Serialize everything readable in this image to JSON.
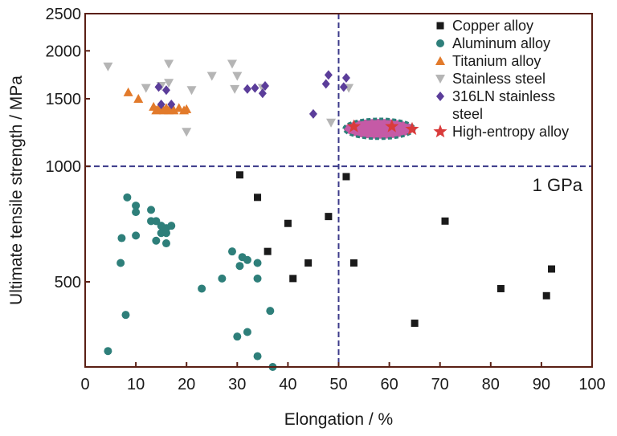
{
  "chart_data": {
    "type": "scatter",
    "xlabel": "Elongation / %",
    "ylabel": "Ultimate tensile strength / MPa",
    "xlim": [
      0,
      100
    ],
    "ylim": [
      300,
      2500
    ],
    "y_scale": "log",
    "x_ticks": [
      0,
      10,
      20,
      30,
      40,
      50,
      60,
      70,
      80,
      90,
      100
    ],
    "y_ticks": [
      500,
      1000,
      1500,
      2000,
      2500
    ],
    "x_tick_labels": [
      "0",
      "10",
      "20",
      "30",
      "40",
      "50",
      "60",
      "70",
      "80",
      "90",
      "100"
    ],
    "y_tick_labels": [
      "500",
      "1000",
      "1500",
      "2000",
      "2500"
    ],
    "legend_position": "top-right",
    "reference_lines": {
      "vertical_x": 50,
      "horizontal_y": 1000
    },
    "annotation": "1 GPa",
    "highlight_ellipse": {
      "x_range": [
        51,
        65
      ],
      "y_range": [
        1180,
        1330
      ]
    },
    "series": [
      {
        "name": "Copper alloy",
        "marker": "square",
        "color": "#1a1a1a",
        "points": [
          [
            30.5,
            950
          ],
          [
            34,
            830
          ],
          [
            36,
            600
          ],
          [
            40,
            710
          ],
          [
            41,
            510
          ],
          [
            44,
            560
          ],
          [
            48,
            740
          ],
          [
            51.5,
            940
          ],
          [
            53,
            560
          ],
          [
            65,
            390
          ],
          [
            71,
            720
          ],
          [
            82,
            480
          ],
          [
            91,
            460
          ],
          [
            92,
            540
          ]
        ]
      },
      {
        "name": "Aluminum alloy",
        "marker": "circle",
        "color": "#2e7f7a",
        "points": [
          [
            4.5,
            330
          ],
          [
            7,
            560
          ],
          [
            7.2,
            650
          ],
          [
            8,
            410
          ],
          [
            8.3,
            830
          ],
          [
            10,
            790
          ],
          [
            10,
            760
          ],
          [
            10,
            660
          ],
          [
            13,
            770
          ],
          [
            13,
            720
          ],
          [
            14,
            720
          ],
          [
            14,
            640
          ],
          [
            15,
            700
          ],
          [
            15,
            670
          ],
          [
            16,
            670
          ],
          [
            16,
            690
          ],
          [
            16,
            630
          ],
          [
            17,
            700
          ],
          [
            23,
            480
          ],
          [
            27,
            510
          ],
          [
            29,
            600
          ],
          [
            30,
            360
          ],
          [
            30.5,
            550
          ],
          [
            31,
            580
          ],
          [
            32,
            570
          ],
          [
            32,
            370
          ],
          [
            34,
            510
          ],
          [
            34,
            560
          ],
          [
            34,
            320
          ],
          [
            36.5,
            420
          ],
          [
            37,
            300
          ]
        ]
      },
      {
        "name": "Titanium alloy",
        "marker": "triangle-up",
        "color": "#e27a2b",
        "points": [
          [
            8.5,
            1560
          ],
          [
            10.5,
            1500
          ],
          [
            13.5,
            1430
          ],
          [
            14,
            1400
          ],
          [
            14.5,
            1420
          ],
          [
            15,
            1410
          ],
          [
            15.5,
            1400
          ],
          [
            16,
            1420
          ],
          [
            16.5,
            1400
          ],
          [
            17,
            1410
          ],
          [
            17.5,
            1400
          ],
          [
            18.5,
            1420
          ],
          [
            19.5,
            1400
          ],
          [
            20,
            1410
          ]
        ]
      },
      {
        "name": "Stainless steel",
        "marker": "triangle-down",
        "color": "#b5b5b5",
        "points": [
          [
            4.5,
            1820
          ],
          [
            12,
            1600
          ],
          [
            15,
            1620
          ],
          [
            16.5,
            1850
          ],
          [
            16.5,
            1650
          ],
          [
            20,
            1230
          ],
          [
            21,
            1580
          ],
          [
            25,
            1720
          ],
          [
            29,
            1850
          ],
          [
            29.5,
            1590
          ],
          [
            30,
            1720
          ],
          [
            35,
            1600
          ],
          [
            48.5,
            1300
          ],
          [
            52,
            1600
          ]
        ]
      },
      {
        "name": "316LN stainless steel",
        "marker": "diamond",
        "color": "#5b3d9a",
        "points": [
          [
            14.5,
            1610
          ],
          [
            15,
            1450
          ],
          [
            16,
            1580
          ],
          [
            17,
            1450
          ],
          [
            32,
            1590
          ],
          [
            33.5,
            1600
          ],
          [
            35,
            1550
          ],
          [
            35.5,
            1620
          ],
          [
            45,
            1370
          ],
          [
            47.5,
            1640
          ],
          [
            48,
            1730
          ],
          [
            51,
            1610
          ],
          [
            51.5,
            1700
          ]
        ]
      },
      {
        "name": "High-entropy alloy",
        "marker": "star",
        "color": "#d93b3b",
        "points": [
          [
            53,
            1270
          ],
          [
            60.5,
            1270
          ],
          [
            64.5,
            1250
          ]
        ]
      }
    ]
  }
}
